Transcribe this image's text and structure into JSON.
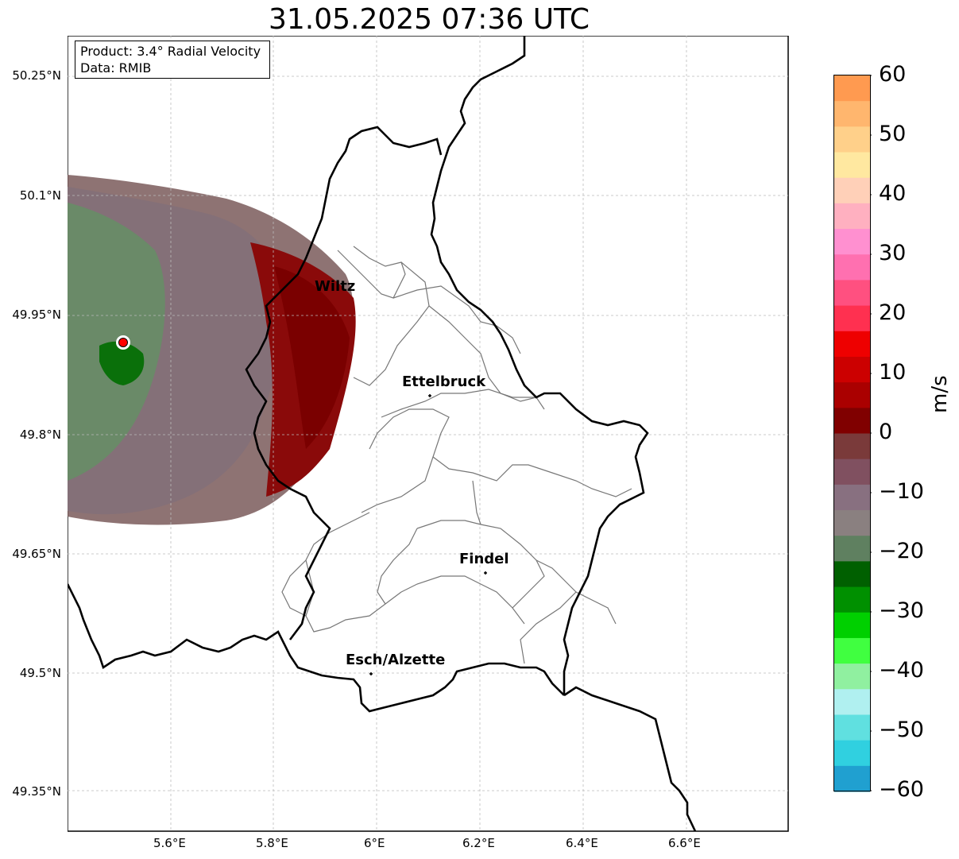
{
  "title": "31.05.2025 07:36 UTC",
  "info": {
    "product": "Product: 3.4° Radial Velocity",
    "data": "Data: RMIB"
  },
  "axes": {
    "lat_ticks": [
      "50.25°N",
      "50.1°N",
      "49.95°N",
      "49.8°N",
      "49.65°N",
      "49.5°N",
      "49.35°N"
    ],
    "lon_ticks": [
      "5.6°E",
      "5.8°E",
      "6°E",
      "6.2°E",
      "6.4°E",
      "6.6°E"
    ]
  },
  "colorbar": {
    "unit": "m/s",
    "ticks": [
      "60",
      "50",
      "40",
      "30",
      "20",
      "10",
      "0",
      "−10",
      "−20",
      "−30",
      "−40",
      "−50",
      "−60"
    ],
    "range": [
      -60,
      60
    ],
    "colors": [
      "#ff9a50",
      "#ffb66e",
      "#ffd08a",
      "#ffe8a0",
      "#ffd0b8",
      "#ffb0c0",
      "#ff90d0",
      "#ff70b0",
      "#ff5080",
      "#ff3050",
      "#ee0000",
      "#cc0000",
      "#aa0000",
      "#800000",
      "#7a3a3a",
      "#805060",
      "#887080",
      "#8a8080",
      "#5f8060",
      "#006000",
      "#009000",
      "#00d000",
      "#40ff40",
      "#90f0a0",
      "#b0f0f0",
      "#60e0e0",
      "#30d0e0",
      "#20a0d0"
    ]
  },
  "cities": [
    {
      "name": "Wiltz"
    },
    {
      "name": "Ettelbruck"
    },
    {
      "name": "Findel"
    },
    {
      "name": "Esch/Alzette"
    }
  ]
}
